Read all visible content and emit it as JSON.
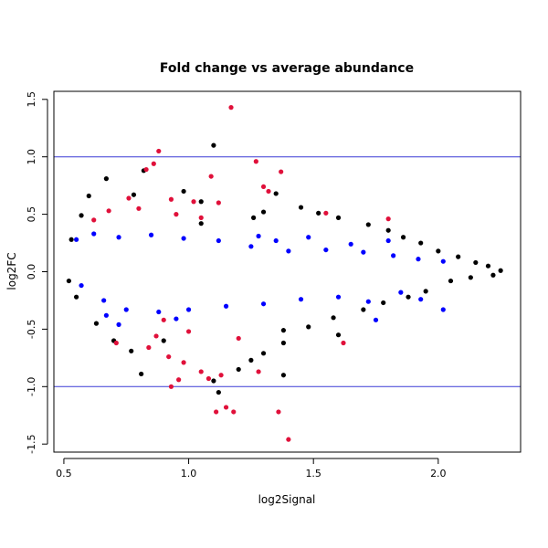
{
  "chart_data": {
    "type": "scatter",
    "title": "Fold change vs average abundance",
    "xlabel": "log2Signal",
    "ylabel": "log2FC",
    "xlim": [
      0.46,
      2.33
    ],
    "ylim": [
      -1.57,
      1.57
    ],
    "x_ticks": [
      0.5,
      1.0,
      1.5,
      2.0
    ],
    "y_ticks": [
      -1.5,
      -1.0,
      -0.5,
      0.0,
      0.5,
      1.0,
      1.5
    ],
    "x_tick_labels": [
      "0.5",
      "1.0",
      "1.5",
      "2.0"
    ],
    "y_tick_labels": [
      "-1.5",
      "-1.0",
      "-0.5",
      "0.0",
      "0.5",
      "1.0",
      "1.5"
    ],
    "hlines": [
      1.0,
      -1.0
    ],
    "hline_color": "#3b3bd6",
    "grid": false,
    "legend": "none",
    "colors": {
      "black": "#000000",
      "blue": "#0000ff",
      "red": "#e0103a"
    },
    "series": [
      {
        "color": "black",
        "points": [
          [
            1.1,
            1.1
          ],
          [
            0.67,
            0.81
          ],
          [
            0.82,
            0.88
          ],
          [
            0.78,
            0.67
          ],
          [
            0.6,
            0.66
          ],
          [
            1.35,
            0.68
          ],
          [
            1.45,
            0.56
          ],
          [
            1.52,
            0.51
          ],
          [
            1.6,
            0.47
          ],
          [
            1.72,
            0.41
          ],
          [
            1.8,
            0.36
          ],
          [
            1.86,
            0.3
          ],
          [
            1.93,
            0.25
          ],
          [
            2.0,
            0.18
          ],
          [
            2.08,
            0.13
          ],
          [
            2.15,
            0.08
          ],
          [
            2.2,
            0.05
          ],
          [
            2.25,
            0.01
          ],
          [
            2.22,
            -0.03
          ],
          [
            2.13,
            -0.05
          ],
          [
            2.05,
            -0.08
          ],
          [
            1.95,
            -0.17
          ],
          [
            1.88,
            -0.22
          ],
          [
            1.78,
            -0.27
          ],
          [
            1.7,
            -0.33
          ],
          [
            1.58,
            -0.4
          ],
          [
            1.48,
            -0.48
          ],
          [
            1.38,
            -0.62
          ],
          [
            1.3,
            -0.71
          ],
          [
            1.25,
            -0.77
          ],
          [
            1.2,
            -0.85
          ],
          [
            1.38,
            -0.9
          ],
          [
            0.81,
            -0.89
          ],
          [
            1.12,
            -1.05
          ],
          [
            1.1,
            -0.95
          ],
          [
            0.7,
            -0.6
          ],
          [
            0.63,
            -0.45
          ],
          [
            0.55,
            -0.22
          ],
          [
            0.52,
            -0.08
          ],
          [
            0.53,
            0.28
          ],
          [
            0.57,
            0.49
          ],
          [
            1.05,
            0.61
          ],
          [
            0.98,
            0.7
          ],
          [
            1.3,
            0.52
          ],
          [
            1.05,
            0.42
          ],
          [
            1.26,
            0.47
          ],
          [
            1.38,
            -0.51
          ],
          [
            1.6,
            -0.55
          ],
          [
            0.9,
            -0.6
          ],
          [
            0.77,
            -0.69
          ]
        ]
      },
      {
        "color": "blue",
        "points": [
          [
            0.55,
            0.28
          ],
          [
            0.62,
            0.33
          ],
          [
            0.72,
            0.3
          ],
          [
            0.85,
            0.32
          ],
          [
            0.98,
            0.29
          ],
          [
            1.12,
            0.27
          ],
          [
            1.25,
            0.22
          ],
          [
            1.4,
            0.18
          ],
          [
            1.55,
            0.19
          ],
          [
            1.7,
            0.17
          ],
          [
            1.82,
            0.14
          ],
          [
            1.92,
            0.11
          ],
          [
            2.02,
            0.09
          ],
          [
            1.8,
            0.27
          ],
          [
            1.65,
            0.24
          ],
          [
            0.57,
            -0.12
          ],
          [
            0.66,
            -0.25
          ],
          [
            0.75,
            -0.33
          ],
          [
            0.88,
            -0.35
          ],
          [
            1.0,
            -0.33
          ],
          [
            1.15,
            -0.3
          ],
          [
            1.3,
            -0.28
          ],
          [
            1.45,
            -0.24
          ],
          [
            1.6,
            -0.22
          ],
          [
            1.72,
            -0.26
          ],
          [
            1.85,
            -0.18
          ],
          [
            1.93,
            -0.24
          ],
          [
            2.02,
            -0.33
          ],
          [
            1.75,
            -0.42
          ],
          [
            0.67,
            -0.38
          ],
          [
            0.72,
            -0.46
          ],
          [
            0.95,
            -0.41
          ],
          [
            1.35,
            0.27
          ],
          [
            1.28,
            0.31
          ],
          [
            1.48,
            0.3
          ]
        ]
      },
      {
        "color": "red",
        "points": [
          [
            1.17,
            1.43
          ],
          [
            0.88,
            1.05
          ],
          [
            0.86,
            0.94
          ],
          [
            1.27,
            0.96
          ],
          [
            1.37,
            0.87
          ],
          [
            0.83,
            0.89
          ],
          [
            1.09,
            0.83
          ],
          [
            1.3,
            0.74
          ],
          [
            1.32,
            0.7
          ],
          [
            0.76,
            0.64
          ],
          [
            0.93,
            0.63
          ],
          [
            1.02,
            0.61
          ],
          [
            1.12,
            0.6
          ],
          [
            1.55,
            0.51
          ],
          [
            1.8,
            0.46
          ],
          [
            0.68,
            0.53
          ],
          [
            0.8,
            0.55
          ],
          [
            0.95,
            0.5
          ],
          [
            1.05,
            0.47
          ],
          [
            0.62,
            0.45
          ],
          [
            0.71,
            -0.62
          ],
          [
            0.84,
            -0.66
          ],
          [
            0.92,
            -0.74
          ],
          [
            0.98,
            -0.79
          ],
          [
            1.05,
            -0.87
          ],
          [
            1.13,
            -0.9
          ],
          [
            0.96,
            -0.94
          ],
          [
            0.93,
            -1.0
          ],
          [
            1.08,
            -0.93
          ],
          [
            1.28,
            -0.87
          ],
          [
            1.11,
            -1.22
          ],
          [
            1.15,
            -1.18
          ],
          [
            1.18,
            -1.22
          ],
          [
            1.36,
            -1.22
          ],
          [
            1.4,
            -1.46
          ],
          [
            1.62,
            -0.62
          ],
          [
            0.87,
            -0.56
          ],
          [
            1.0,
            -0.52
          ],
          [
            1.2,
            -0.58
          ],
          [
            0.9,
            -0.42
          ]
        ]
      }
    ]
  }
}
